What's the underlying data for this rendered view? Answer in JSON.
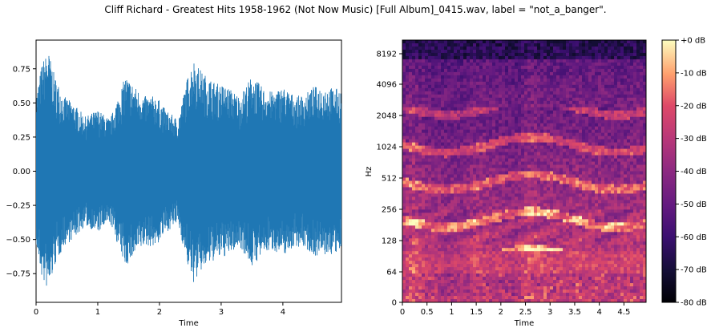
{
  "title": "Cliff Richard - Greatest Hits 1958-1962 (Not Now Music) [Full Album]_0415.wav, label = \"not_a_banger\".",
  "colors": {
    "waveform": "#1f77b4",
    "colormap": "magma",
    "axis": "#000000",
    "background": "#ffffff"
  },
  "chart_data": [
    {
      "type": "line",
      "name": "waveform",
      "xlabel": "Time",
      "ylabel": "",
      "xlim": [
        0,
        4.95
      ],
      "ylim": [
        -0.96,
        0.96
      ],
      "xticks": [
        0,
        1,
        2,
        3,
        4
      ],
      "xtick_labels": [
        "0",
        "1",
        "2",
        "3",
        "4"
      ],
      "yticks": [
        0.75,
        0.5,
        0.25,
        0.0,
        -0.25,
        -0.5,
        -0.75
      ],
      "ytick_labels": [
        "0.75",
        "0.50",
        "0.25",
        "0.00",
        "−0.25",
        "−0.50",
        "−0.75"
      ],
      "envelope": {
        "time": [
          0.0,
          0.1,
          0.2,
          0.3,
          0.45,
          0.6,
          0.8,
          1.0,
          1.2,
          1.45,
          1.6,
          1.75,
          1.95,
          2.1,
          2.3,
          2.45,
          2.55,
          2.7,
          2.9,
          3.1,
          3.3,
          3.5,
          3.7,
          3.85,
          4.0,
          4.2,
          4.35,
          4.5,
          4.7,
          4.95
        ],
        "peak": [
          0.55,
          0.8,
          0.88,
          0.7,
          0.55,
          0.5,
          0.4,
          0.45,
          0.38,
          0.7,
          0.62,
          0.55,
          0.55,
          0.45,
          0.38,
          0.68,
          0.82,
          0.72,
          0.65,
          0.62,
          0.55,
          0.7,
          0.6,
          0.58,
          0.62,
          0.55,
          0.56,
          0.62,
          0.62,
          0.6
        ]
      }
    },
    {
      "type": "heatmap",
      "name": "spectrogram",
      "xlabel": "Time",
      "ylabel": "Hz",
      "xlim": [
        0,
        4.95
      ],
      "yscale": "log2-like (librosa log frequency)",
      "xticks": [
        0,
        0.5,
        1,
        1.5,
        2,
        2.5,
        3,
        3.5,
        4,
        4.5
      ],
      "xtick_labels": [
        "0",
        "0.5",
        "1",
        "1.5",
        "2",
        "2.5",
        "3",
        "3.5",
        "4",
        "4.5"
      ],
      "yticks": [
        0,
        64,
        128,
        256,
        512,
        1024,
        2048,
        4096,
        8192
      ],
      "ytick_labels": [
        "0",
        "64",
        "128",
        "256",
        "512",
        "1024",
        "2048",
        "4096",
        "8192"
      ],
      "colorbar": {
        "range_db": [
          -80,
          0
        ],
        "ticks": [
          0,
          -10,
          -20,
          -30,
          -40,
          -50,
          -60,
          -70,
          -80
        ],
        "tick_labels": [
          "+0 dB",
          "-10 dB",
          "-20 dB",
          "-30 dB",
          "-40 dB",
          "-50 dB",
          "-60 dB",
          "-70 dB",
          "-80 dB"
        ]
      }
    }
  ]
}
